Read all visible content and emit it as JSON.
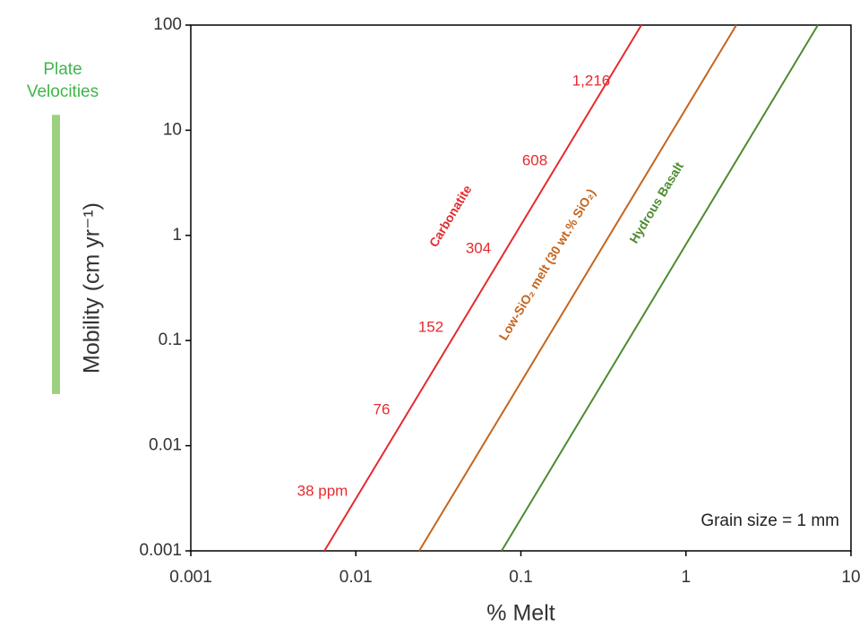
{
  "chart_data": {
    "type": "line",
    "x_label": "% Melt",
    "y_label": "Mobility (cm yr⁻¹)",
    "log_x": true,
    "log_y": true,
    "xlim": [
      0.001,
      10
    ],
    "ylim": [
      0.001,
      100
    ],
    "xticks": [
      0.001,
      0.01,
      0.1,
      1,
      10
    ],
    "yticks": [
      0.001,
      0.01,
      0.1,
      1,
      10,
      100
    ],
    "series": [
      {
        "name": "Carbonatite",
        "color": "#e52b2f",
        "x": [
          0.00645,
          0.537
        ],
        "values": [
          0.001,
          100
        ]
      },
      {
        "name": "Low-SiO₂ melt (30 wt.% SiO₂)",
        "color": "#c5651e",
        "x": [
          0.0242,
          2.02
        ],
        "values": [
          0.001,
          100
        ]
      },
      {
        "name": "Hydrous Basalt",
        "color": "#4d8b31",
        "x": [
          0.0764,
          6.3
        ],
        "values": [
          0.001,
          100
        ]
      }
    ],
    "annotations": [
      "38 ppm",
      "76",
      "152",
      "304",
      "608",
      "1,216"
    ],
    "note": "Grain size = 1 mm",
    "plate_velocities": {
      "label": [
        "Plate",
        "Velocities"
      ],
      "color": "#9dd17f",
      "range": [
        0.031,
        14
      ]
    }
  }
}
